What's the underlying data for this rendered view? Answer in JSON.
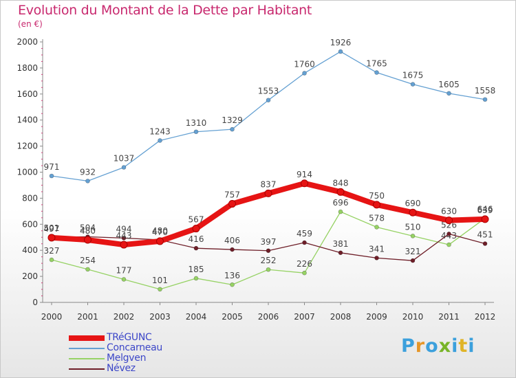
{
  "header": {
    "title": "Evolution du Montant de la Dette par Habitant",
    "subtitle": "(en €)"
  },
  "logo": {
    "text": "Proxiti",
    "colors": [
      "#3ca0dc",
      "#e69628",
      "#3ca0dc",
      "#78b428",
      "#3ca0dc",
      "#e0b428",
      "#3ca0dc"
    ]
  },
  "chart_data": {
    "type": "line",
    "x": [
      "2000",
      "2001",
      "2002",
      "2003",
      "2004",
      "2005",
      "2006",
      "2007",
      "2008",
      "2009",
      "2010",
      "2011",
      "2012"
    ],
    "ylim": [
      0,
      2000
    ],
    "yticks": [
      0,
      200,
      400,
      600,
      800,
      1000,
      1200,
      1400,
      1600,
      1800,
      2000
    ],
    "grid": false,
    "legend_placement": "bottom-left",
    "series": [
      {
        "name": "Concarneau",
        "color": "#64a0d2",
        "values": [
          971,
          932,
          1037,
          1243,
          1310,
          1329,
          1553,
          1760,
          1926,
          1765,
          1675,
          1605,
          1558
        ]
      },
      {
        "name": "Melgven",
        "color": "#96d264",
        "values": [
          327,
          254,
          177,
          101,
          185,
          136,
          252,
          226,
          696,
          578,
          510,
          443,
          646
        ]
      },
      {
        "name": "Névez",
        "color": "#6e1e28",
        "values": [
          501,
          504,
          494,
          480,
          416,
          406,
          397,
          459,
          381,
          341,
          321,
          526,
          451
        ]
      },
      {
        "name": "TRéGUNC",
        "color": "#e61414",
        "values": [
          497,
          480,
          443,
          470,
          567,
          757,
          837,
          914,
          848,
          750,
          690,
          630,
          639
        ]
      }
    ],
    "legend_order": [
      "TRéGUNC",
      "Concarneau",
      "Melgven",
      "Névez"
    ]
  }
}
